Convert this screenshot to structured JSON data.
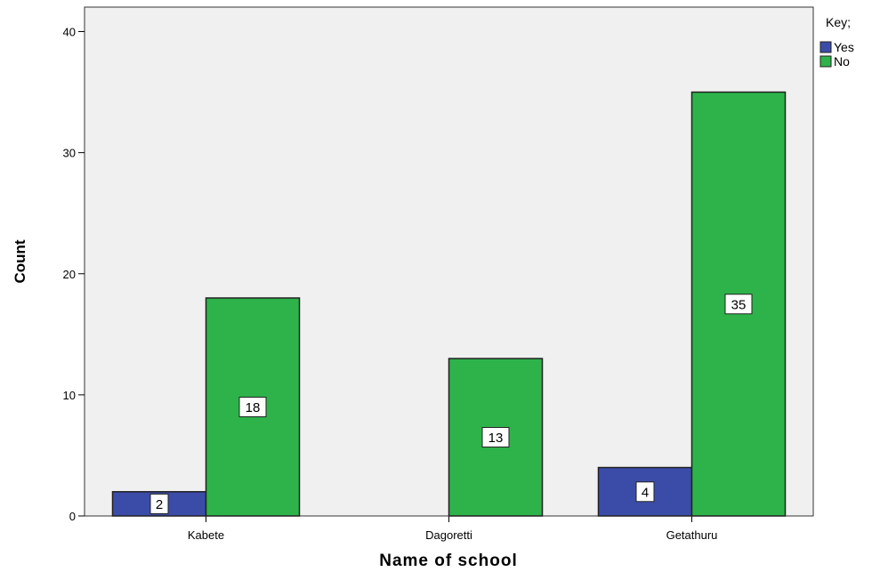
{
  "chart_data": {
    "type": "bar",
    "categories": [
      "Kabete",
      "Dagoretti",
      "Getathuru"
    ],
    "series": [
      {
        "name": "Yes",
        "values": [
          2,
          0,
          4
        ],
        "color": "#3b4ca8"
      },
      {
        "name": "No",
        "values": [
          18,
          13,
          35
        ],
        "color": "#2db34a"
      }
    ],
    "data_labels": [
      [
        "2",
        "",
        "4"
      ],
      [
        "18",
        "13",
        "35"
      ]
    ],
    "xlabel": "Name of school",
    "ylabel": "Count",
    "ylim": [
      0,
      40
    ],
    "yticks": [
      0,
      10,
      20,
      30,
      40
    ],
    "grid": false,
    "plot_background": "#f0f0f0",
    "legend": {
      "title": "Key;",
      "position": "top-right"
    }
  }
}
